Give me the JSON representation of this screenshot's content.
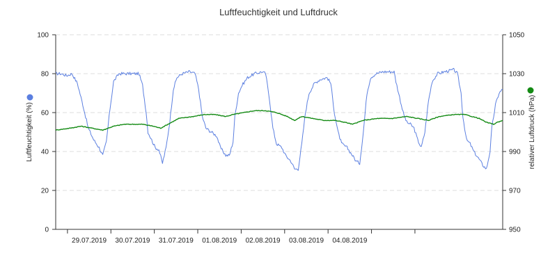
{
  "chart_data": {
    "type": "line",
    "title": "Luftfeuchtigkeit und Luftdruck",
    "x_ticks": [
      "29.07.2019",
      "30.07.2019",
      "31.07.2019",
      "01.08.2019",
      "02.08.2019",
      "03.08.2019",
      "04.08.2019"
    ],
    "x_range": [
      "28.07.2019 00:00",
      "04.08.2019 23:00"
    ],
    "y_left": {
      "label": "Luftfeuchtigkeit (%)",
      "min": 0,
      "max": 100,
      "ticks": [
        0,
        20,
        40,
        60,
        80,
        100
      ]
    },
    "y_right": {
      "label": "relativer Luftdruck (hPa)",
      "min": 950,
      "max": 1050,
      "ticks": [
        950,
        970,
        990,
        1010,
        1030,
        1050
      ]
    },
    "grid": "horizontal dashed",
    "legend": "axis-markers",
    "series": [
      {
        "axis": "left",
        "color": "#5b7fe0",
        "points": [
          [
            0,
            80
          ],
          [
            3,
            80
          ],
          [
            6,
            79
          ],
          [
            9,
            80
          ],
          [
            12,
            75
          ],
          [
            15,
            64
          ],
          [
            18,
            52
          ],
          [
            21,
            46
          ],
          [
            24,
            42
          ],
          [
            26,
            38
          ],
          [
            28,
            45
          ],
          [
            30,
            62
          ],
          [
            32,
            76
          ],
          [
            35,
            80
          ],
          [
            39,
            80
          ],
          [
            43,
            80
          ],
          [
            46,
            80
          ],
          [
            48,
            74
          ],
          [
            50,
            60
          ],
          [
            51,
            50
          ],
          [
            53,
            46
          ],
          [
            55,
            42
          ],
          [
            57,
            41
          ],
          [
            59,
            34
          ],
          [
            61,
            42
          ],
          [
            63,
            55
          ],
          [
            65,
            72
          ],
          [
            67,
            78
          ],
          [
            70,
            80
          ],
          [
            74,
            81
          ],
          [
            77,
            80
          ],
          [
            79,
            72
          ],
          [
            81,
            58
          ],
          [
            83,
            52
          ],
          [
            86,
            50
          ],
          [
            89,
            48
          ],
          [
            91,
            42
          ],
          [
            94,
            38
          ],
          [
            96,
            38
          ],
          [
            98,
            45
          ],
          [
            99,
            58
          ],
          [
            101,
            70
          ],
          [
            103,
            74
          ],
          [
            106,
            78
          ],
          [
            110,
            80
          ],
          [
            114,
            81
          ],
          [
            116,
            80
          ],
          [
            118,
            68
          ],
          [
            120,
            52
          ],
          [
            122,
            44
          ],
          [
            125,
            42
          ],
          [
            127,
            38
          ],
          [
            130,
            35
          ],
          [
            132,
            31
          ],
          [
            134,
            31
          ],
          [
            136,
            44
          ],
          [
            138,
            60
          ],
          [
            140,
            70
          ],
          [
            143,
            75
          ],
          [
            146,
            77
          ],
          [
            150,
            78
          ],
          [
            152,
            75
          ],
          [
            154,
            60
          ],
          [
            156,
            50
          ],
          [
            158,
            44
          ],
          [
            161,
            42
          ],
          [
            164,
            38
          ],
          [
            166,
            35
          ],
          [
            168,
            34
          ],
          [
            170,
            50
          ],
          [
            172,
            70
          ],
          [
            174,
            78
          ],
          [
            177,
            80
          ],
          [
            181,
            81
          ],
          [
            187,
            81
          ],
          [
            188,
            76
          ],
          [
            190,
            68
          ],
          [
            192,
            60
          ],
          [
            194,
            55
          ],
          [
            196,
            54
          ],
          [
            198,
            52
          ],
          [
            200,
            46
          ],
          [
            202,
            42
          ],
          [
            204,
            50
          ],
          [
            206,
            66
          ],
          [
            208,
            76
          ],
          [
            211,
            80
          ],
          [
            215,
            81
          ],
          [
            220,
            82
          ],
          [
            222,
            80
          ],
          [
            224,
            70
          ],
          [
            225,
            58
          ],
          [
            227,
            46
          ],
          [
            229,
            44
          ],
          [
            231,
            40
          ],
          [
            234,
            36
          ],
          [
            236,
            33
          ],
          [
            238,
            31
          ],
          [
            240,
            40
          ],
          [
            241,
            52
          ],
          [
            243,
            64
          ],
          [
            245,
            70
          ],
          [
            247,
            72
          ]
        ]
      },
      {
        "axis": "right",
        "color": "#138a13",
        "points": [
          [
            0,
            1001
          ],
          [
            8,
            1002
          ],
          [
            14,
            1003
          ],
          [
            20,
            1002
          ],
          [
            26,
            1001
          ],
          [
            32,
            1003
          ],
          [
            38,
            1004
          ],
          [
            44,
            1004
          ],
          [
            48,
            1004
          ],
          [
            54,
            1003
          ],
          [
            58,
            1002
          ],
          [
            62,
            1004
          ],
          [
            68,
            1007
          ],
          [
            76,
            1008
          ],
          [
            82,
            1009
          ],
          [
            88,
            1009
          ],
          [
            94,
            1008
          ],
          [
            98,
            1009
          ],
          [
            104,
            1010
          ],
          [
            110,
            1011
          ],
          [
            116,
            1011
          ],
          [
            122,
            1010
          ],
          [
            128,
            1008
          ],
          [
            132,
            1006
          ],
          [
            136,
            1008
          ],
          [
            142,
            1007
          ],
          [
            148,
            1006
          ],
          [
            154,
            1006
          ],
          [
            160,
            1005
          ],
          [
            164,
            1004
          ],
          [
            170,
            1006
          ],
          [
            178,
            1007
          ],
          [
            186,
            1007
          ],
          [
            194,
            1008
          ],
          [
            200,
            1007
          ],
          [
            206,
            1006
          ],
          [
            212,
            1008
          ],
          [
            220,
            1009
          ],
          [
            226,
            1009
          ],
          [
            230,
            1008
          ],
          [
            234,
            1007
          ],
          [
            238,
            1005
          ],
          [
            242,
            1004
          ],
          [
            244,
            1005
          ],
          [
            247,
            1006
          ]
        ]
      }
    ]
  }
}
